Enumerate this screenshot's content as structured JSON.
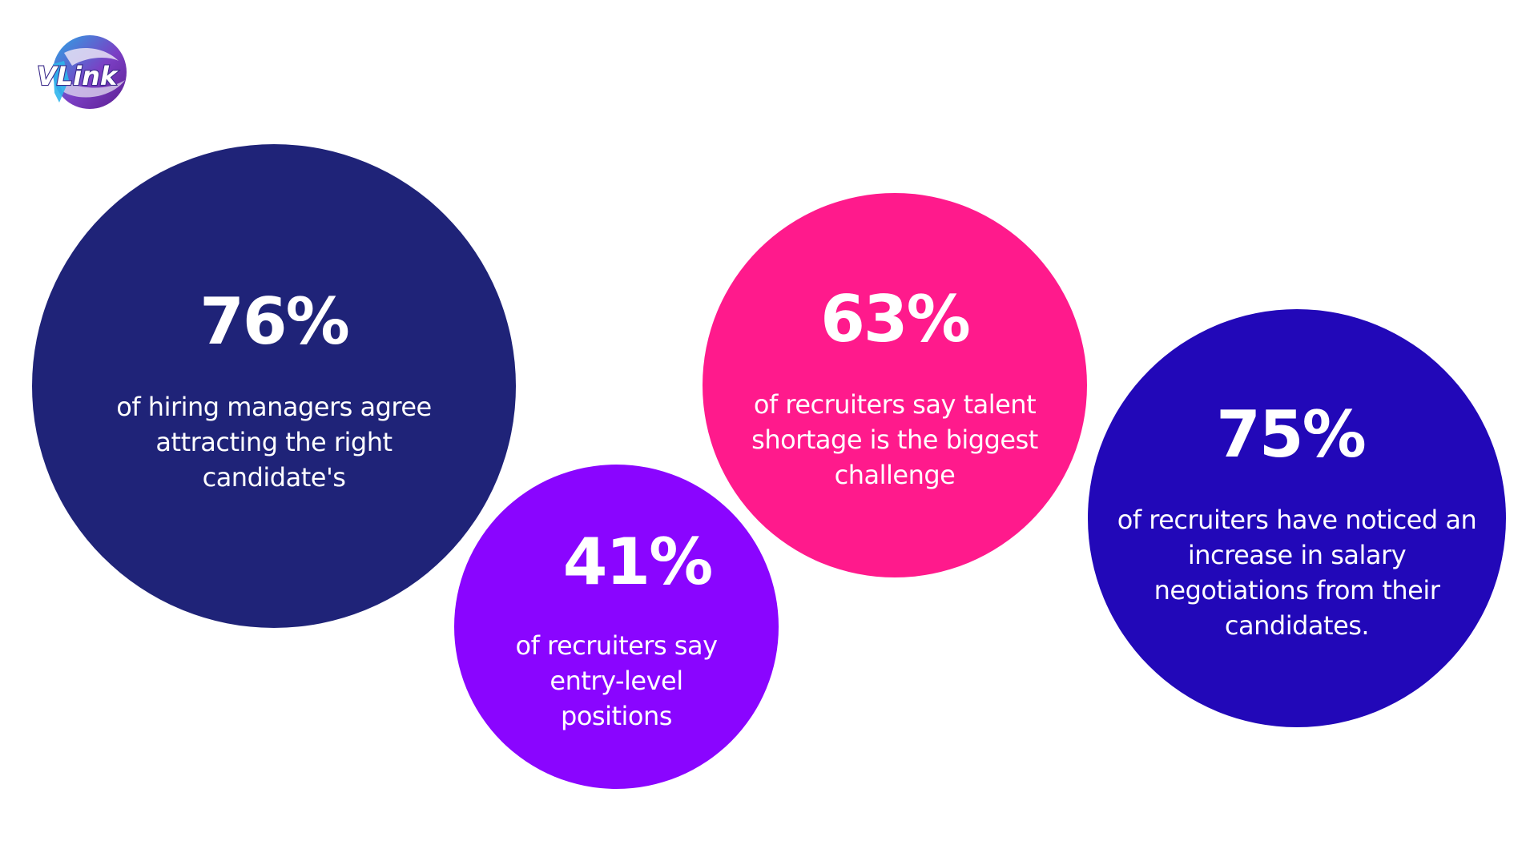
{
  "brand": {
    "logo_text": "VLink",
    "logo_icon": "globe-icon"
  },
  "stats": [
    {
      "value": "76%",
      "description": "of hiring managers agree attracting the right candidate's",
      "color": "#1f2378"
    },
    {
      "value": "41%",
      "description": "of recruiters say entry-level positions",
      "color": "#8a05ff"
    },
    {
      "value": "63%",
      "description": "of recruiters say talent shortage is the biggest challenge",
      "color": "#ff1a8c"
    },
    {
      "value": "75%",
      "description": "of recruiters have noticed an increase in salary negotiations from their candidates.",
      "color": "#2208b8"
    }
  ]
}
